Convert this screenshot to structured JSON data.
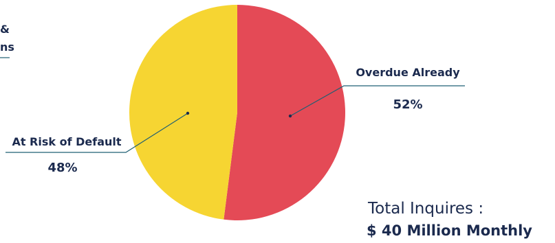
{
  "chart_data": {
    "type": "pie",
    "slices": [
      {
        "label": "Overdue Already",
        "value": 52,
        "value_label": "52%",
        "color": "#e44a56"
      },
      {
        "label": "At Risk of Default",
        "value": 48,
        "value_label": "48%",
        "color": "#f6d532"
      }
    ],
    "legend": "none",
    "start": "top",
    "direction": "clockwise"
  },
  "cropped_text": {
    "line1": "&",
    "line2": "ns"
  },
  "total": {
    "label": "Total Inquires :",
    "value": "$ 40 Million Monthly"
  },
  "colors": {
    "text": "#1b2a4e",
    "leader": "#1f5f73"
  }
}
